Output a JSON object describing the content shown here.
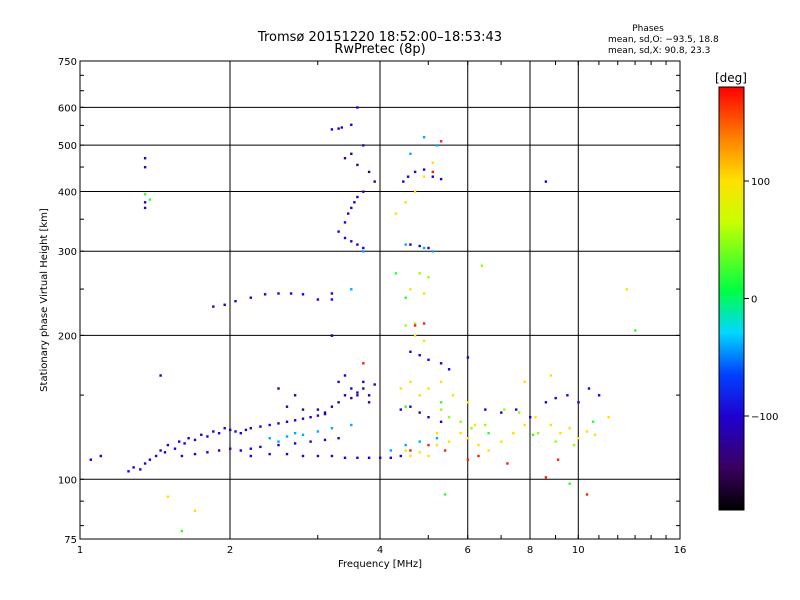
{
  "chart_data": {
    "type": "scatter",
    "title": "Tromsø 20151220 18:52:00–18:53:43",
    "subtitle": "RwPretec (8p)",
    "xlabel": "Frequency [MHz]",
    "ylabel": "Stationary phase Virtual Height [km]",
    "x_scale": "log",
    "y_scale": "log",
    "xlim": [
      1,
      16
    ],
    "ylim": [
      75,
      750
    ],
    "x_ticks": [
      1,
      2,
      4,
      6,
      8,
      10,
      16
    ],
    "y_ticks": [
      75,
      100,
      200,
      300,
      400,
      500,
      600,
      750
    ],
    "x_grid": [
      2,
      4,
      6,
      8,
      10
    ],
    "y_grid": [
      100,
      200,
      300,
      400,
      500,
      600
    ],
    "grid": true,
    "stats": {
      "heading": "Phases",
      "line1": "mean, sd,O: −93.5, 18.8",
      "line2": "mean, sd,X:  90.8, 23.3"
    },
    "colorbar": {
      "label": "[deg]",
      "min": -180,
      "max": 180,
      "ticks": [
        100,
        0,
        -100
      ],
      "tick_labels": [
        "100",
        "0",
        "−100"
      ]
    },
    "series": [
      {
        "color_value": -100,
        "points": [
          [
            1.05,
            110
          ],
          [
            1.1,
            112
          ],
          [
            1.25,
            104
          ],
          [
            1.28,
            106
          ],
          [
            1.32,
            105
          ],
          [
            1.35,
            108
          ],
          [
            1.38,
            110
          ],
          [
            1.42,
            112
          ],
          [
            1.45,
            115
          ],
          [
            1.48,
            114
          ],
          [
            1.5,
            118
          ],
          [
            1.55,
            116
          ],
          [
            1.58,
            120
          ],
          [
            1.62,
            119
          ],
          [
            1.65,
            122
          ],
          [
            1.7,
            121
          ],
          [
            1.75,
            124
          ],
          [
            1.8,
            123
          ],
          [
            1.85,
            126
          ],
          [
            1.9,
            125
          ],
          [
            1.95,
            128
          ],
          [
            2.0,
            127
          ],
          [
            2.05,
            126
          ],
          [
            2.1,
            125
          ],
          [
            2.15,
            127
          ],
          [
            2.2,
            128
          ],
          [
            2.3,
            129
          ],
          [
            2.4,
            130
          ],
          [
            2.5,
            131
          ],
          [
            2.6,
            132
          ],
          [
            2.7,
            133
          ],
          [
            2.8,
            134
          ],
          [
            2.9,
            135
          ],
          [
            3.0,
            136
          ],
          [
            3.1,
            137
          ],
          [
            1.6,
            112
          ],
          [
            1.7,
            113
          ],
          [
            1.8,
            114
          ],
          [
            1.9,
            115
          ],
          [
            2.0,
            116
          ],
          [
            2.1,
            115
          ],
          [
            2.2,
            116
          ],
          [
            2.3,
            117
          ],
          [
            2.5,
            118
          ],
          [
            2.7,
            119
          ],
          [
            2.9,
            120
          ],
          [
            3.1,
            121
          ],
          [
            3.3,
            122
          ],
          [
            2.2,
            112
          ],
          [
            2.4,
            113
          ],
          [
            2.6,
            113
          ],
          [
            2.8,
            112
          ],
          [
            3.0,
            112
          ],
          [
            3.2,
            112
          ],
          [
            3.4,
            111
          ],
          [
            3.6,
            111
          ],
          [
            3.8,
            111
          ],
          [
            4.0,
            111
          ],
          [
            4.2,
            111
          ],
          [
            4.4,
            112
          ],
          [
            1.45,
            165
          ],
          [
            1.35,
            470
          ],
          [
            1.35,
            450
          ],
          [
            1.35,
            380
          ],
          [
            1.35,
            370
          ],
          [
            1.85,
            230
          ],
          [
            1.95,
            232
          ],
          [
            2.05,
            236
          ],
          [
            2.2,
            240
          ],
          [
            2.35,
            244
          ],
          [
            2.5,
            245
          ],
          [
            2.65,
            245
          ],
          [
            2.8,
            244
          ],
          [
            3.0,
            238
          ],
          [
            3.2,
            540
          ],
          [
            3.3,
            542
          ],
          [
            3.35,
            545
          ],
          [
            3.5,
            552
          ],
          [
            3.6,
            600
          ],
          [
            3.3,
            330
          ],
          [
            3.4,
            345
          ],
          [
            3.45,
            360
          ],
          [
            3.5,
            370
          ],
          [
            3.55,
            380
          ],
          [
            3.6,
            390
          ],
          [
            3.7,
            400
          ],
          [
            3.4,
            320
          ],
          [
            3.5,
            315
          ],
          [
            3.6,
            310
          ],
          [
            3.7,
            305
          ],
          [
            4.45,
            420
          ],
          [
            4.55,
            430
          ],
          [
            4.7,
            440
          ],
          [
            4.9,
            445
          ],
          [
            5.1,
            430
          ],
          [
            5.3,
            425
          ],
          [
            4.6,
            310
          ],
          [
            4.8,
            308
          ],
          [
            5.0,
            305
          ],
          [
            4.6,
            185
          ],
          [
            4.8,
            182
          ],
          [
            5.0,
            178
          ],
          [
            5.3,
            175
          ],
          [
            5.5,
            170
          ],
          [
            4.4,
            140
          ],
          [
            4.6,
            142
          ],
          [
            4.8,
            138
          ],
          [
            5.0,
            135
          ],
          [
            5.3,
            132
          ],
          [
            3.4,
            165
          ],
          [
            3.7,
            160
          ],
          [
            3.9,
            158
          ],
          [
            3.6,
            150
          ],
          [
            3.8,
            145
          ],
          [
            3.2,
            200
          ],
          [
            3.3,
            160
          ],
          [
            3.5,
            155
          ],
          [
            6.0,
            180
          ],
          [
            6.5,
            140
          ],
          [
            7.0,
            138
          ],
          [
            7.5,
            140
          ],
          [
            8.0,
            135
          ],
          [
            8.6,
            145
          ],
          [
            9.0,
            148
          ],
          [
            9.5,
            150
          ],
          [
            10.0,
            145
          ],
          [
            10.5,
            155
          ],
          [
            11.0,
            150
          ],
          [
            8.6,
            420
          ],
          [
            3.2,
            245
          ],
          [
            3.2,
            238
          ]
        ]
      },
      {
        "color_value": -130,
        "points": [
          [
            3.0,
            140
          ],
          [
            3.1,
            138
          ],
          [
            3.2,
            142
          ],
          [
            3.3,
            145
          ],
          [
            3.4,
            150
          ],
          [
            3.5,
            148
          ],
          [
            3.6,
            152
          ],
          [
            3.7,
            155
          ],
          [
            3.8,
            150
          ],
          [
            2.6,
            142
          ],
          [
            2.8,
            140
          ],
          [
            3.2,
            200
          ],
          [
            2.5,
            155
          ],
          [
            2.7,
            150
          ],
          [
            3.4,
            470
          ],
          [
            3.5,
            480
          ],
          [
            3.6,
            455
          ],
          [
            3.7,
            500
          ],
          [
            3.8,
            440
          ],
          [
            3.9,
            420
          ]
        ]
      },
      {
        "color_value": -40,
        "points": [
          [
            2.4,
            122
          ],
          [
            2.5,
            120
          ],
          [
            2.6,
            123
          ],
          [
            2.7,
            125
          ],
          [
            2.8,
            124
          ],
          [
            3.0,
            126
          ],
          [
            3.2,
            128
          ],
          [
            3.5,
            130
          ],
          [
            4.2,
            115
          ],
          [
            4.5,
            118
          ],
          [
            4.8,
            120
          ],
          [
            5.2,
            122
          ],
          [
            4.6,
            480
          ],
          [
            4.9,
            520
          ],
          [
            5.2,
            500
          ],
          [
            4.5,
            310
          ],
          [
            4.9,
            305
          ],
          [
            5.1,
            300
          ],
          [
            3.5,
            250
          ],
          [
            3.7,
            300
          ]
        ]
      },
      {
        "color_value": 100,
        "points": [
          [
            4.5,
            115
          ],
          [
            4.6,
            112
          ],
          [
            4.8,
            114
          ],
          [
            5.0,
            112
          ],
          [
            5.2,
            118
          ],
          [
            5.5,
            120
          ],
          [
            5.8,
            125
          ],
          [
            6.0,
            122
          ],
          [
            6.3,
            118
          ],
          [
            6.6,
            115
          ],
          [
            7.0,
            120
          ],
          [
            7.4,
            125
          ],
          [
            7.8,
            130
          ],
          [
            8.2,
            135
          ],
          [
            8.8,
            130
          ],
          [
            9.2,
            125
          ],
          [
            9.6,
            128
          ],
          [
            10.0,
            122
          ],
          [
            10.4,
            126
          ],
          [
            10.8,
            124
          ],
          [
            4.8,
            150
          ],
          [
            5.0,
            155
          ],
          [
            5.3,
            160
          ],
          [
            5.6,
            150
          ],
          [
            6.0,
            145
          ],
          [
            4.3,
            360
          ],
          [
            4.5,
            380
          ],
          [
            4.7,
            400
          ],
          [
            4.9,
            430
          ],
          [
            5.1,
            460
          ],
          [
            4.7,
            200
          ],
          [
            4.9,
            195
          ],
          [
            4.6,
            250
          ],
          [
            4.9,
            245
          ],
          [
            5.2,
            125
          ],
          [
            6.2,
            130
          ],
          [
            7.8,
            160
          ],
          [
            8.8,
            165
          ],
          [
            12.5,
            250
          ],
          [
            11.5,
            135
          ],
          [
            1.7,
            86
          ],
          [
            1.5,
            92
          ],
          [
            4.4,
            155
          ],
          [
            4.6,
            160
          ]
        ]
      },
      {
        "color_value": 50,
        "points": [
          [
            5.3,
            140
          ],
          [
            5.5,
            135
          ],
          [
            5.8,
            132
          ],
          [
            6.1,
            128
          ],
          [
            6.5,
            130
          ],
          [
            7.1,
            140
          ],
          [
            7.6,
            138
          ],
          [
            8.3,
            125
          ],
          [
            9.0,
            120
          ],
          [
            9.8,
            118
          ],
          [
            4.8,
            270
          ],
          [
            5.0,
            265
          ],
          [
            6.4,
            280
          ],
          [
            4.5,
            210
          ],
          [
            4.7,
            212
          ]
        ]
      },
      {
        "color_value": 170,
        "points": [
          [
            4.6,
            115
          ],
          [
            5.0,
            118
          ],
          [
            5.4,
            115
          ],
          [
            4.7,
            210
          ],
          [
            4.9,
            212
          ],
          [
            5.1,
            440
          ],
          [
            5.3,
            510
          ],
          [
            6.0,
            110
          ],
          [
            6.3,
            112
          ],
          [
            7.2,
            108
          ],
          [
            9.1,
            110
          ],
          [
            3.7,
            175
          ],
          [
            8.6,
            101
          ],
          [
            10.4,
            93
          ]
        ]
      },
      {
        "color_value": 20,
        "points": [
          [
            1.35,
            395
          ],
          [
            1.38,
            385
          ],
          [
            4.3,
            270
          ],
          [
            4.5,
            240
          ],
          [
            4.5,
            142
          ],
          [
            5.3,
            145
          ],
          [
            6.6,
            125
          ],
          [
            8.1,
            124
          ],
          [
            10.7,
            132
          ],
          [
            13.0,
            205
          ],
          [
            9.6,
            98
          ],
          [
            5.4,
            93
          ],
          [
            1.6,
            78
          ]
        ]
      }
    ]
  }
}
